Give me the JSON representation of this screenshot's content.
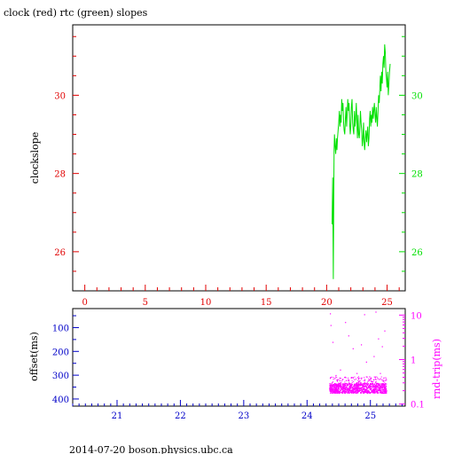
{
  "chart_data": [
    {
      "type": "line",
      "title": "clock (red) rtc (green) slopes",
      "ylabel": "clockslope",
      "xlim": [
        -1,
        26.5
      ],
      "ylim": [
        25,
        31.8
      ],
      "x_ticks": [
        "0",
        "5",
        "10",
        "15",
        "20",
        "25"
      ],
      "x_tick_values": [
        0,
        5,
        10,
        15,
        20,
        25
      ],
      "y_ticks_left": [
        "26",
        "28",
        "30"
      ],
      "y_ticks_right": [
        "26",
        "28",
        "30"
      ],
      "y_tick_values": [
        26,
        28,
        30
      ],
      "colors": {
        "clock": "#e00000",
        "rtc": "#00e000"
      },
      "series": [
        {
          "name": "rtc",
          "color": "#00e000",
          "x": [
            20.45,
            20.5,
            20.55,
            20.6,
            20.62,
            20.65,
            20.7,
            20.75,
            20.8,
            20.85,
            20.9,
            20.95,
            21.0,
            21.05,
            21.1,
            21.15,
            21.2,
            21.25,
            21.3,
            21.35,
            21.4,
            21.45,
            21.5,
            21.55,
            21.6,
            21.65,
            21.7,
            21.75,
            21.8,
            21.85,
            21.9,
            21.95,
            22.0,
            22.05,
            22.1,
            22.15,
            22.2,
            22.25,
            22.3,
            22.35,
            22.4,
            22.45,
            22.5,
            22.55,
            22.6,
            22.65,
            22.7,
            22.75,
            22.8,
            22.85,
            22.9,
            22.95,
            23.0,
            23.05,
            23.1,
            23.15,
            23.2,
            23.25,
            23.3,
            23.35,
            23.4,
            23.45,
            23.5,
            23.55,
            23.6,
            23.65,
            23.7,
            23.75,
            23.8,
            23.85,
            23.9,
            23.95,
            24.0,
            24.05,
            24.1,
            24.15,
            24.2,
            24.25,
            24.3,
            24.35,
            24.4,
            24.45,
            24.5,
            24.55,
            24.6,
            24.65,
            24.7,
            24.75,
            24.8,
            24.85,
            24.9,
            24.95,
            25.0,
            25.05,
            25.1,
            25.15,
            25.2,
            25.25
          ],
          "y": [
            26.7,
            27.9,
            25.3,
            27.8,
            28.6,
            29.0,
            28.7,
            28.5,
            28.9,
            28.6,
            28.9,
            29.1,
            29.3,
            29.6,
            29.2,
            29.5,
            29.3,
            29.9,
            29.6,
            29.8,
            29.3,
            29.1,
            29.0,
            29.4,
            29.7,
            29.2,
            29.5,
            29.9,
            29.6,
            29.8,
            29.3,
            29.0,
            29.2,
            29.7,
            29.9,
            29.3,
            29.1,
            29.0,
            29.6,
            29.2,
            29.4,
            29.8,
            29.3,
            28.9,
            29.5,
            29.0,
            28.9,
            29.2,
            29.6,
            29.3,
            29.1,
            28.7,
            28.9,
            29.3,
            28.8,
            28.6,
            28.9,
            29.1,
            28.8,
            29.0,
            29.2,
            28.7,
            28.9,
            29.4,
            29.6,
            29.2,
            29.5,
            29.3,
            29.7,
            29.4,
            29.6,
            29.8,
            29.5,
            29.3,
            29.7,
            29.4,
            29.2,
            29.6,
            30.0,
            29.8,
            30.2,
            30.5,
            30.1,
            30.6,
            30.3,
            30.8,
            31.0,
            30.7,
            31.3,
            31.1,
            30.6,
            30.4,
            30.2,
            30.6,
            30.0,
            30.3,
            30.6,
            30.8
          ]
        }
      ]
    },
    {
      "type": "scatter",
      "ylabel_left": "offset(ms)",
      "ylabel_right": "rnd-trip(ms)",
      "xlim": [
        20.3,
        25.55
      ],
      "ylim_left": [
        430,
        20
      ],
      "right_scale": "log",
      "ylim_right": [
        0.09,
        14
      ],
      "x_ticks": [
        "21",
        "22",
        "23",
        "24",
        "25"
      ],
      "x_tick_values": [
        21,
        22,
        23,
        24,
        25
      ],
      "y_ticks_left": [
        "100",
        "200",
        "300",
        "400"
      ],
      "y_tick_values_left": [
        100,
        200,
        300,
        400
      ],
      "y_ticks_right": [
        "0.1",
        "1",
        "10"
      ],
      "y_tick_values_right": [
        0.1,
        1,
        10
      ],
      "colors": {
        "offset": "#0000c8",
        "rndtrip": "#ff00ff"
      },
      "series": [
        {
          "name": "rnd-trip",
          "color": "#ff00ff",
          "band_x": [
            24.35,
            25.25
          ],
          "band_y": [
            0.18,
            0.3
          ],
          "outliers_x": [
            24.36,
            24.37,
            24.4,
            24.45,
            24.52,
            24.6,
            24.65,
            24.7,
            24.72,
            24.78,
            24.85,
            24.9,
            24.93,
            24.98,
            25.05,
            25.08,
            25.12,
            25.15,
            25.18,
            25.2,
            25.22
          ],
          "outliers_y": [
            11.0,
            6.0,
            2.5,
            0.45,
            0.6,
            7.0,
            3.5,
            0.4,
            1.8,
            0.5,
            2.2,
            10.5,
            0.9,
            0.42,
            1.2,
            12.0,
            3.0,
            0.5,
            2.0,
            0.35,
            4.5
          ]
        }
      ]
    }
  ],
  "footer": "2014-07-20 boson.physics.ubc.ca"
}
